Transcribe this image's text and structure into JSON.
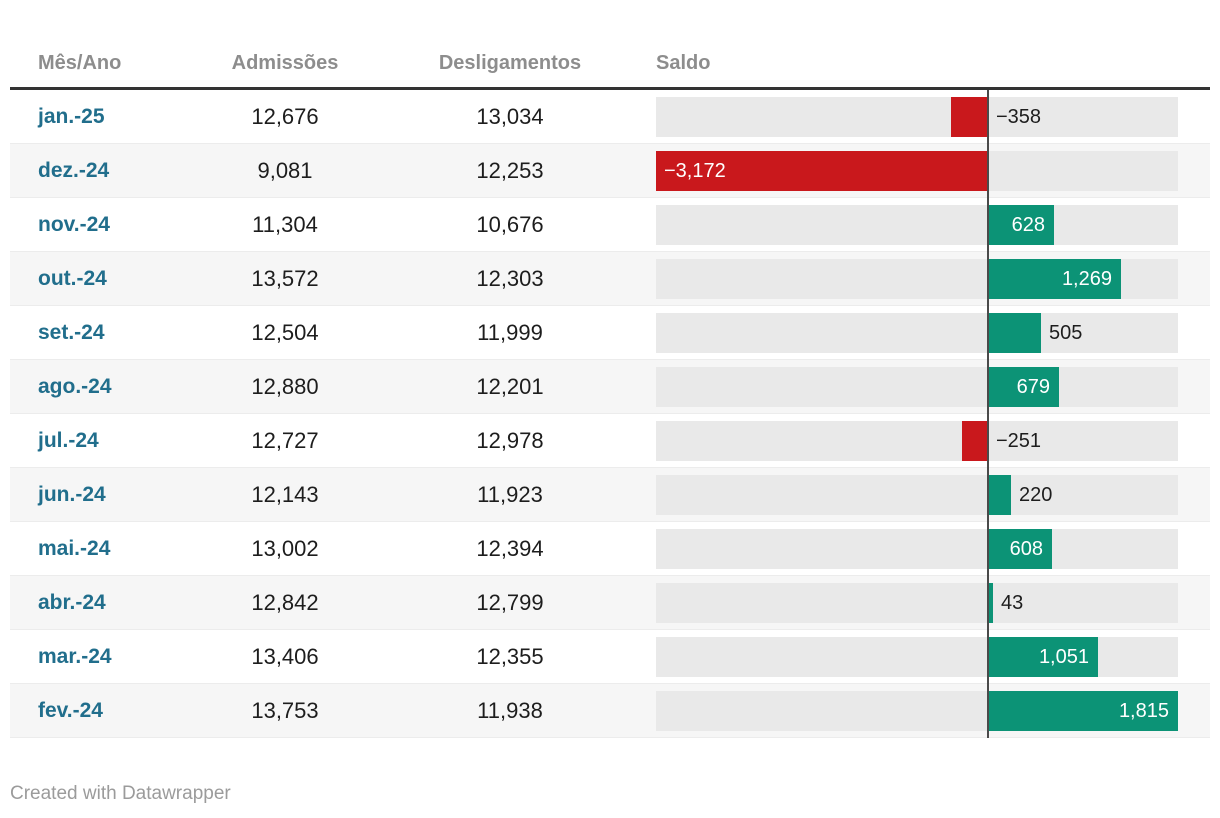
{
  "table": {
    "columns": [
      {
        "label": "Mês/Ano"
      },
      {
        "label": "Admissões"
      },
      {
        "label": "Desligamentos"
      },
      {
        "label": "Saldo"
      }
    ],
    "rows": [
      {
        "month": "jan.-25",
        "admissoes": "12,676",
        "desligamentos": "13,034",
        "saldo": -358,
        "saldo_label": "−358",
        "label_inside": false
      },
      {
        "month": "dez.-24",
        "admissoes": "9,081",
        "desligamentos": "12,253",
        "saldo": -3172,
        "saldo_label": "−3,172",
        "label_inside": true
      },
      {
        "month": "nov.-24",
        "admissoes": "11,304",
        "desligamentos": "10,676",
        "saldo": 628,
        "saldo_label": "628",
        "label_inside": true
      },
      {
        "month": "out.-24",
        "admissoes": "13,572",
        "desligamentos": "12,303",
        "saldo": 1269,
        "saldo_label": "1,269",
        "label_inside": true
      },
      {
        "month": "set.-24",
        "admissoes": "12,504",
        "desligamentos": "11,999",
        "saldo": 505,
        "saldo_label": "505",
        "label_inside": false
      },
      {
        "month": "ago.-24",
        "admissoes": "12,880",
        "desligamentos": "12,201",
        "saldo": 679,
        "saldo_label": "679",
        "label_inside": true
      },
      {
        "month": "jul.-24",
        "admissoes": "12,727",
        "desligamentos": "12,978",
        "saldo": -251,
        "saldo_label": "−251",
        "label_inside": false
      },
      {
        "month": "jun.-24",
        "admissoes": "12,143",
        "desligamentos": "11,923",
        "saldo": 220,
        "saldo_label": "220",
        "label_inside": false
      },
      {
        "month": "mai.-24",
        "admissoes": "13,002",
        "desligamentos": "12,394",
        "saldo": 608,
        "saldo_label": "608",
        "label_inside": true
      },
      {
        "month": "abr.-24",
        "admissoes": "12,842",
        "desligamentos": "12,799",
        "saldo": 43,
        "saldo_label": "43",
        "label_inside": false
      },
      {
        "month": "mar.-24",
        "admissoes": "13,406",
        "desligamentos": "12,355",
        "saldo": 1051,
        "saldo_label": "1,051",
        "label_inside": true
      },
      {
        "month": "fev.-24",
        "admissoes": "13,753",
        "desligamentos": "11,938",
        "saldo": 1815,
        "saldo_label": "1,815",
        "label_inside": true
      }
    ]
  },
  "bar_chart": {
    "min": -3172,
    "max": 1815,
    "positive_color": "#0c9376",
    "negative_color": "#c9181c",
    "track_color": "#e9e9e9",
    "baseline_color": "#4a4a4a"
  },
  "footer": {
    "credit": "Created with Datawrapper"
  },
  "chart_data": {
    "type": "table",
    "title": "",
    "columns": [
      "Mês/Ano",
      "Admissões",
      "Desligamentos",
      "Saldo"
    ],
    "rows": [
      [
        "jan.-25",
        12676,
        13034,
        -358
      ],
      [
        "dez.-24",
        9081,
        12253,
        -3172
      ],
      [
        "nov.-24",
        11304,
        10676,
        628
      ],
      [
        "out.-24",
        13572,
        12303,
        1269
      ],
      [
        "set.-24",
        12504,
        11999,
        505
      ],
      [
        "ago.-24",
        12880,
        12201,
        679
      ],
      [
        "jul.-24",
        12727,
        12978,
        -251
      ],
      [
        "jun.-24",
        12143,
        11923,
        220
      ],
      [
        "mai.-24",
        13002,
        12394,
        608
      ],
      [
        "abr.-24",
        12842,
        12799,
        43
      ],
      [
        "mar.-24",
        13406,
        12355,
        1051
      ],
      [
        "fev.-24",
        13753,
        11938,
        1815
      ]
    ],
    "saldo_column_chart": {
      "type": "bar",
      "orientation": "horizontal",
      "xlim": [
        -3172,
        1815
      ],
      "positive_color": "#0c9376",
      "negative_color": "#c9181c",
      "legend": "none",
      "grid": "off"
    }
  }
}
